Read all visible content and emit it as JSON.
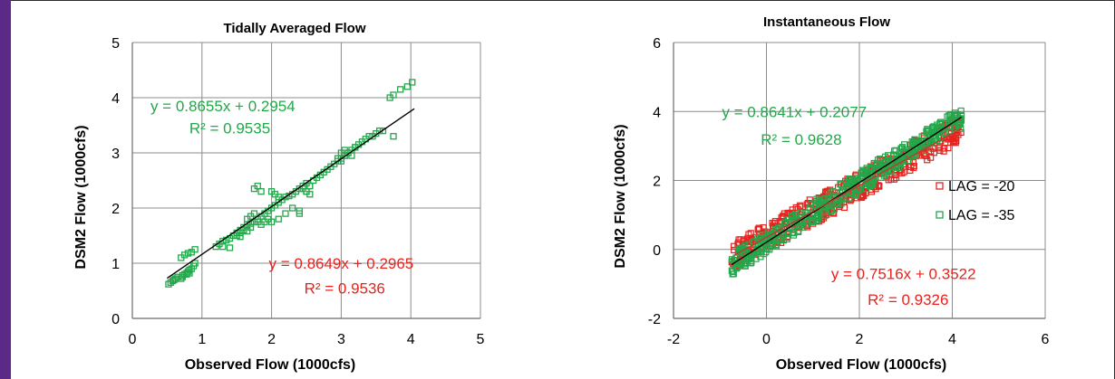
{
  "colors": {
    "frame": "#5b2a86",
    "green": "#22a84a",
    "red": "#e8231e",
    "grid": "#8c8c8c",
    "fit_line": "#000000",
    "red_fit": "#c0392b"
  },
  "chart_data": [
    {
      "type": "scatter",
      "title": "Tidally Averaged Flow",
      "xlabel": "Observed Flow (1000cfs)",
      "ylabel": "DSM2 Flow (1000cfs)",
      "xlim": [
        0,
        5
      ],
      "ylim": [
        0,
        5
      ],
      "xticks": [
        "0",
        "1",
        "2",
        "3",
        "4",
        "5"
      ],
      "yticks": [
        "0",
        "1",
        "2",
        "3",
        "4",
        "5"
      ],
      "grid": true,
      "trendline": {
        "slope": 0.8655,
        "intercept": 0.2954,
        "x_range": [
          0.5,
          4.05
        ]
      },
      "annotations": [
        {
          "text": "y = 0.8655x + 0.2954",
          "color": "green",
          "x": 1.3,
          "y": 3.85
        },
        {
          "text": "R² = 0.9535",
          "color": "green",
          "x": 1.4,
          "y": 3.45
        },
        {
          "text": "y = 0.8649x + 0.2965",
          "color": "red",
          "x": 3.0,
          "y": 1.0
        },
        {
          "text": "R² = 0.9536",
          "color": "red",
          "x": 3.05,
          "y": 0.55
        }
      ],
      "series": [
        {
          "marker": "green",
          "x": [
            0.52,
            0.55,
            0.58,
            0.6,
            0.62,
            0.65,
            0.7,
            0.72,
            0.75,
            0.78,
            0.8,
            0.82,
            0.85,
            0.88,
            0.9,
            0.7,
            0.75,
            0.8,
            0.85,
            0.9,
            0.72,
            0.78,
            0.82,
            1.2,
            1.25,
            1.3,
            1.35,
            1.4,
            1.45,
            1.5,
            1.55,
            1.6,
            1.65,
            1.7,
            1.75,
            1.8,
            1.85,
            1.9,
            1.95,
            2.0,
            2.05,
            2.1,
            2.15,
            2.2,
            2.25,
            2.3,
            2.35,
            2.4,
            2.45,
            2.5,
            1.65,
            1.7,
            1.75,
            1.8,
            1.85,
            1.9,
            1.95,
            2.0,
            2.05,
            2.1,
            1.75,
            1.8,
            1.85,
            2.0,
            2.1,
            2.2,
            2.3,
            2.4,
            2.5,
            2.55,
            2.6,
            2.65,
            2.7,
            2.75,
            2.8,
            2.85,
            2.9,
            2.95,
            3.0,
            3.05,
            3.1,
            3.15,
            3.2,
            3.25,
            3.3,
            3.35,
            3.4,
            3.45,
            3.5,
            3.55,
            3.6,
            3.0,
            3.05,
            3.1,
            3.15,
            3.2,
            2.95,
            3.0,
            3.05,
            1.55,
            1.6,
            1.65,
            1.7,
            1.5,
            1.55,
            2.45,
            2.5,
            2.55,
            3.7,
            3.75,
            3.85,
            3.95,
            4.02,
            3.75,
            2.4,
            2.55,
            1.3,
            1.4
          ],
          "y": [
            0.62,
            0.65,
            0.68,
            0.7,
            0.72,
            0.75,
            0.72,
            0.78,
            0.8,
            0.82,
            0.85,
            0.88,
            0.9,
            0.95,
            1.0,
            1.1,
            1.15,
            1.18,
            1.2,
            1.25,
            0.75,
            0.8,
            0.82,
            1.3,
            1.35,
            1.4,
            1.42,
            1.45,
            1.5,
            1.55,
            1.6,
            1.65,
            1.7,
            1.72,
            1.75,
            1.8,
            1.85,
            1.9,
            1.95,
            2.0,
            2.05,
            2.1,
            2.15,
            2.2,
            2.22,
            2.25,
            2.3,
            2.35,
            2.4,
            2.45,
            1.8,
            1.85,
            1.9,
            1.75,
            1.7,
            1.75,
            1.8,
            2.3,
            2.25,
            2.2,
            2.35,
            2.4,
            2.3,
            1.75,
            1.8,
            1.9,
            2.0,
            1.95,
            2.3,
            2.4,
            2.5,
            2.55,
            2.6,
            2.65,
            2.7,
            2.75,
            2.8,
            2.85,
            2.9,
            2.95,
            3.0,
            3.05,
            3.1,
            3.15,
            3.2,
            3.25,
            3.3,
            3.3,
            3.35,
            3.4,
            3.4,
            3.0,
            3.05,
            3.0,
            2.95,
            3.1,
            2.9,
            2.85,
            2.95,
            1.55,
            1.6,
            1.58,
            1.65,
            1.5,
            1.48,
            2.35,
            2.3,
            2.4,
            4.0,
            4.05,
            4.15,
            4.2,
            4.28,
            3.3,
            1.9,
            2.25,
            1.3,
            1.28
          ]
        }
      ]
    },
    {
      "type": "scatter",
      "title": "Instantaneous Flow",
      "xlabel": "Observed Flow (1000cfs)",
      "ylabel": "DSM2 Flow (1000cfs)",
      "xlim": [
        -2,
        6
      ],
      "ylim": [
        -2,
        6
      ],
      "xticks": [
        "-2",
        "0",
        "2",
        "4",
        "6"
      ],
      "yticks": [
        "-2",
        "0",
        "2",
        "4",
        "6"
      ],
      "grid": true,
      "legend": {
        "placement": "right",
        "items": [
          {
            "label": "LAG = -20",
            "color": "red"
          },
          {
            "label": "LAG = -35",
            "color": "green"
          }
        ]
      },
      "trendlines": [
        {
          "color": "black",
          "slope": 0.8641,
          "intercept": 0.2077,
          "x_range": [
            -0.75,
            4.2
          ]
        },
        {
          "color": "red_fit",
          "slope": 0.7516,
          "intercept": 0.3522,
          "x_range": [
            -0.7,
            4.2
          ]
        }
      ],
      "annotations": [
        {
          "text": "y = 0.8641x + 0.2077",
          "color": "green",
          "x": 0.6,
          "y": 4.0
        },
        {
          "text": "R² = 0.9628",
          "color": "green",
          "x": 0.75,
          "y": 3.2
        },
        {
          "text": "y = 0.7516x + 0.3522",
          "color": "red",
          "x": 2.95,
          "y": -0.7
        },
        {
          "text": "R² = 0.9326",
          "color": "red",
          "x": 3.05,
          "y": -1.45
        }
      ],
      "series": [
        {
          "name": "LAG = -20",
          "marker": "red",
          "band": {
            "slope": 0.7516,
            "intercept": 0.3522,
            "spread": 0.4,
            "x_range": [
              -0.75,
              4.2
            ],
            "count": 420
          }
        },
        {
          "name": "LAG = -35",
          "marker": "green",
          "band": {
            "slope": 0.8641,
            "intercept": 0.2077,
            "spread": 0.32,
            "x_range": [
              -0.75,
              4.2
            ],
            "count": 420
          }
        }
      ]
    }
  ]
}
